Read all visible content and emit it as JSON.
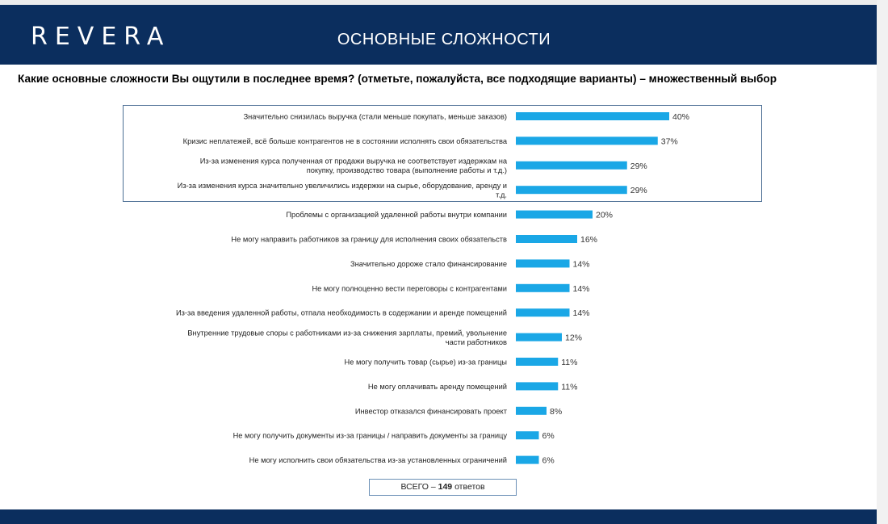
{
  "header": {
    "logo_text": "REVERA",
    "slide_title": "ОСНОВНЫЕ СЛОЖНОСТИ"
  },
  "question": "Какие основные сложности Вы ощутили в последнее время? (отметьте, пожалуйста, все подходящие варианты) – множественный выбор",
  "total": {
    "prefix": "ВСЕГО – ",
    "count": "149",
    "suffix": " ответов"
  },
  "colors": {
    "header_bg": "#0b2e5e",
    "bar": "#1aa7e6",
    "highlight_border": "#4d6f95"
  },
  "chart_data": {
    "type": "bar",
    "orientation": "horizontal",
    "title": "",
    "xlabel": "",
    "ylabel": "",
    "xlim": [
      0,
      40
    ],
    "unit": "%",
    "highlighted_top_n": 4,
    "categories": [
      [
        "Значительно снизилась выручка (стали меньше покупать, меньше заказов)"
      ],
      [
        "Кризис неплатежей, всё больше контрагентов не в состоянии исполнять свои обязательства"
      ],
      [
        "Из-за изменения курса полученная от продажи выручка не соответствует издержкам на",
        "покупку, производство товара (выполнение работы и т.д.)"
      ],
      [
        "Из-за изменения курса значительно увеличились издержки на сырье, оборудование, аренду и",
        "т.д."
      ],
      [
        "Проблемы с организацией удаленной работы внутри компании"
      ],
      [
        "Не могу направить работников за границу для исполнения своих обязательств"
      ],
      [
        "Значительно дороже стало финансирование"
      ],
      [
        "Не могу полноценно вести переговоры с контрагентами"
      ],
      [
        "Из-за введения удаленной работы, отпала необходимость в содержании и аренде помещений"
      ],
      [
        "Внутренние трудовые споры с работниками из-за снижения зарплаты, премий, увольнение",
        "части работников"
      ],
      [
        "Не могу получить товар (сырье) из-за границы"
      ],
      [
        "Не могу оплачивать аренду помещений"
      ],
      [
        "Инвестор отказался финансировать проект"
      ],
      [
        "Не могу получить документы из-за границы / направить документы за границу"
      ],
      [
        "Не могу исполнить свои обязательства из-за установленных ограничений"
      ]
    ],
    "values": [
      40,
      37,
      29,
      29,
      20,
      16,
      14,
      14,
      14,
      12,
      11,
      11,
      8,
      6,
      6
    ],
    "value_labels": [
      "40%",
      "37%",
      "29%",
      "29%",
      "20%",
      "16%",
      "14%",
      "14%",
      "14%",
      "12%",
      "11%",
      "11%",
      "8%",
      "6%",
      "6%"
    ]
  }
}
